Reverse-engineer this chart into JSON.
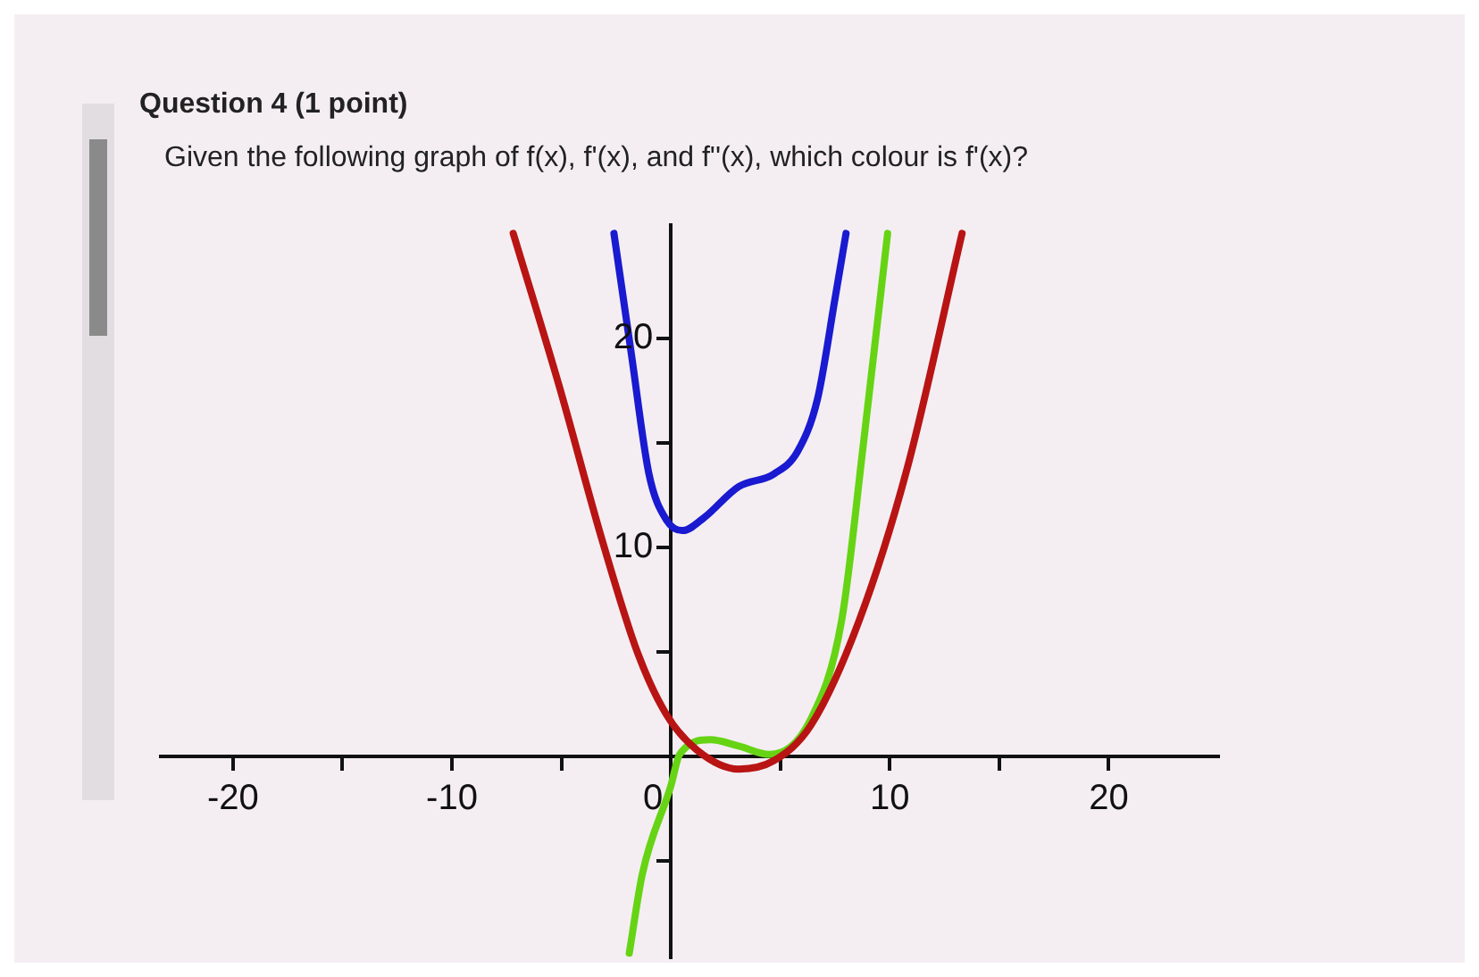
{
  "chart_data": {
    "type": "line",
    "title": "Question 4 (1 point)",
    "subtitle": "Given the following graph of f(x), f'(x), and f''(x), which colour is f'(x)?",
    "series": [
      {
        "color": "#b81414",
        "x": [
          -7.2,
          -5.1,
          -3.1,
          -1.5,
          -0.2,
          1.2,
          3.1,
          4.7,
          6.4,
          8.6,
          10.8,
          13.3
        ],
        "values": [
          25,
          17.7,
          10.2,
          4.9,
          2.0,
          0.3,
          -0.6,
          -0.2,
          1.5,
          6.5,
          13.8,
          25
        ]
      },
      {
        "color": "#1a1ad0",
        "x": [
          -2.6,
          -1.8,
          -1.0,
          -0.2,
          0.55,
          1.5,
          3.1,
          4.7,
          5.8,
          6.7,
          7.5,
          8.0
        ],
        "values": [
          25,
          19.2,
          13.5,
          11.3,
          10.8,
          11.4,
          12.9,
          13.5,
          14.6,
          17.1,
          21.9,
          25
        ]
      },
      {
        "color": "#66d414",
        "x": [
          -1.9,
          -1.3,
          0,
          0.4,
          1.8,
          3.1,
          4.5,
          6.4,
          7.8,
          8.8,
          9.9
        ],
        "values": [
          -9.4,
          -5.6,
          -1.4,
          0.1,
          0.8,
          0.5,
          0.1,
          1.8,
          6.5,
          15,
          25
        ]
      }
    ],
    "xlim": [
      -23.3,
      25
    ],
    "ylim": [
      -9.6,
      25.4
    ],
    "xticks": [
      -20,
      {
        "value": -15,
        "label": null
      },
      -10,
      {
        "value": -5,
        "label": null
      },
      0,
      {
        "value": 5,
        "label": null
      },
      10,
      {
        "value": 15,
        "label": null
      },
      20
    ],
    "yticks": [
      {
        "value": -5,
        "label": null
      },
      {
        "value": 5,
        "label": null
      },
      10,
      {
        "value": 15,
        "label": null
      },
      20
    ],
    "grid": false,
    "legend": false,
    "marker": "none",
    "line_style": "solid"
  }
}
